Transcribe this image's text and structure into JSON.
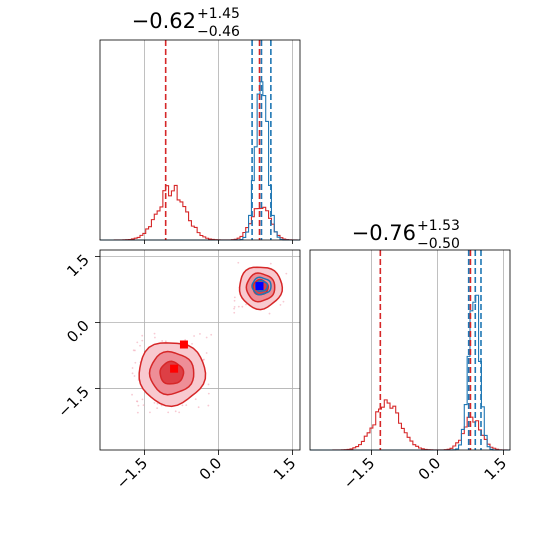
{
  "chart_data": {
    "type": "corner",
    "params": [
      {
        "title_median": "−0.62",
        "title_plus": "+1.45",
        "title_minus": "−0.46",
        "xlim": [
          -2.4,
          1.65
        ],
        "ticks": [
          -1.5,
          0.0,
          1.5
        ],
        "tick_labels": [
          "−1.5",
          "0.0",
          "1.5"
        ]
      },
      {
        "title_median": "−0.76",
        "title_plus": "+1.53",
        "title_minus": "−0.50",
        "xlim": [
          -2.9,
          1.65
        ],
        "ticks": [
          -1.5,
          0.0,
          1.5
        ],
        "tick_labels": [
          "−1.5",
          "0.0",
          "1.5"
        ]
      }
    ],
    "series": [
      {
        "name": "",
        "color": "#d62728",
        "modes": [
          {
            "mean": [
              -0.95,
              -1.15
            ],
            "sd": [
              0.28,
              0.3
            ],
            "weight": 0.68
          },
          {
            "mean": [
              0.85,
              0.8
            ],
            "sd": [
              0.18,
              0.2
            ],
            "weight": 0.32
          }
        ],
        "quantiles_p1": [
          -1.07,
          0.83
        ],
        "quantiles_p2": [
          -1.3,
          0.75
        ],
        "markers": [
          [
            -0.7,
            -0.5
          ],
          [
            -0.9,
            -1.05
          ]
        ]
      },
      {
        "name": "",
        "color": "#1f77b4",
        "modes": [
          {
            "mean": [
              0.87,
              0.83
            ],
            "sd": [
              0.12,
              0.12
            ],
            "weight": 1.0
          }
        ],
        "quantiles_p1": [
          0.68,
          0.87,
          1.06
        ],
        "quantiles_p2": [
          0.71,
          0.86,
          0.99
        ],
        "markers": [
          [
            0.83,
            0.83
          ]
        ]
      }
    ],
    "grid": true
  }
}
